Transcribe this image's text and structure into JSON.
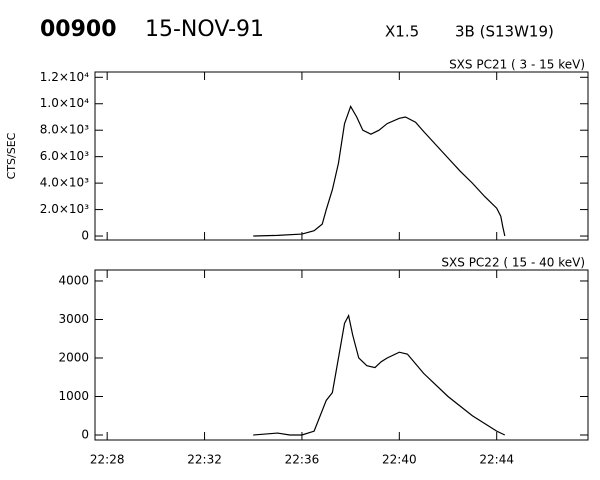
{
  "header": {
    "id": "00900",
    "date": "15-NOV-91",
    "class": "X1.5",
    "location": "3B (S13W19)"
  },
  "chart_data": [
    {
      "type": "line",
      "title": "SXS PC21 (  3 - 15 keV)",
      "y_label": "CTS/SEC",
      "xlim": [
        "22:27:30",
        "22:47:45"
      ],
      "ylim": [
        -300,
        12400
      ],
      "color": "#000000",
      "yticks": [
        {
          "value": 0,
          "label": "0"
        },
        {
          "value": 2000,
          "label": "2.0×10³"
        },
        {
          "value": 4000,
          "label": "4.0×10³"
        },
        {
          "value": 6000,
          "label": "6.0×10³"
        },
        {
          "value": 8000,
          "label": "8.0×10³"
        },
        {
          "value": 10000,
          "label": "1.0×10⁴"
        },
        {
          "value": 12000,
          "label": "1.2×10⁴"
        }
      ],
      "x": [
        "22:34:00",
        "22:35:00",
        "22:36:00",
        "22:36:30",
        "22:36:50",
        "22:37:00",
        "22:37:15",
        "22:37:30",
        "22:37:45",
        "22:38:00",
        "22:38:15",
        "22:38:30",
        "22:38:50",
        "22:39:10",
        "22:39:30",
        "22:40:00",
        "22:40:15",
        "22:40:40",
        "22:41:00",
        "22:41:30",
        "22:42:00",
        "22:42:30",
        "22:43:00",
        "22:43:30",
        "22:44:00",
        "22:44:10",
        "22:44:15",
        "22:44:20"
      ],
      "values": [
        0,
        50,
        150,
        400,
        900,
        2000,
        3500,
        5500,
        8500,
        9800,
        9000,
        8000,
        7700,
        8000,
        8500,
        8900,
        9000,
        8600,
        7900,
        6900,
        5900,
        4900,
        4000,
        3000,
        2100,
        1500,
        700,
        0
      ]
    },
    {
      "type": "line",
      "title": "SXS PC22  ( 15 - 40 keV)",
      "xlim": [
        "22:27:30",
        "22:47:45"
      ],
      "ylim": [
        -130,
        4285
      ],
      "color": "#000000",
      "yticks": [
        0,
        1000,
        2000,
        3000,
        4000
      ],
      "xticks": [
        "22:28",
        "22:32",
        "22:36",
        "22:40",
        "22:44"
      ],
      "x": [
        "22:34:00",
        "22:35:00",
        "22:35:30",
        "22:36:00",
        "22:36:30",
        "22:37:00",
        "22:37:15",
        "22:37:30",
        "22:37:45",
        "22:37:55",
        "22:38:05",
        "22:38:20",
        "22:38:40",
        "22:39:00",
        "22:39:15",
        "22:39:30",
        "22:40:00",
        "22:40:20",
        "22:41:00",
        "22:42:00",
        "22:43:00",
        "22:44:00",
        "22:44:20"
      ],
      "values": [
        0,
        50,
        0,
        0,
        100,
        900,
        1100,
        2000,
        2900,
        3100,
        2600,
        2000,
        1800,
        1750,
        1900,
        2000,
        2150,
        2100,
        1600,
        1000,
        500,
        100,
        0
      ]
    }
  ]
}
